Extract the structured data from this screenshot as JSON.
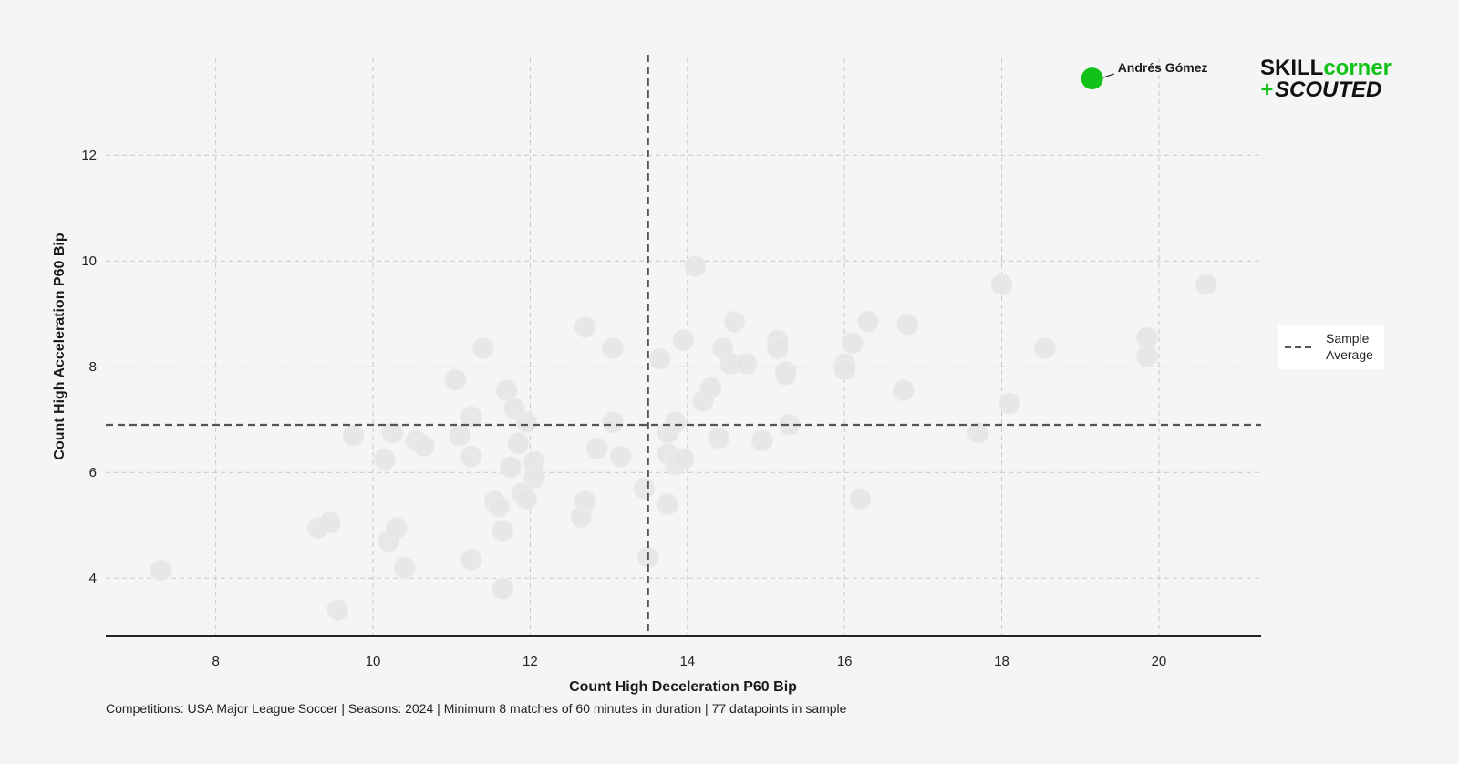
{
  "chart_data": {
    "type": "scatter",
    "title": "",
    "xlabel": "Count High Deceleration P60 Bip",
    "ylabel": "Count High Acceleration P60 Bip",
    "xlim": [
      6.6,
      21.3
    ],
    "ylim": [
      2.9,
      13.9
    ],
    "x_ticks": [
      8,
      10,
      12,
      14,
      16,
      18,
      20
    ],
    "y_ticks": [
      4,
      6,
      8,
      10,
      12
    ],
    "grid": true,
    "reference_lines": {
      "x_average": 13.5,
      "y_average": 6.9,
      "legend_label_line1": "Sample",
      "legend_label_line2": "Average",
      "legend_placement": "right"
    },
    "highlight": {
      "name": "Andrés Gómez",
      "x": 19.15,
      "y": 13.45,
      "color": "#11c218"
    },
    "points": [
      {
        "x": 7.3,
        "y": 4.15
      },
      {
        "x": 9.3,
        "y": 4.95
      },
      {
        "x": 9.45,
        "y": 5.05
      },
      {
        "x": 9.55,
        "y": 3.4
      },
      {
        "x": 9.75,
        "y": 6.7
      },
      {
        "x": 10.15,
        "y": 6.25
      },
      {
        "x": 10.25,
        "y": 6.75
      },
      {
        "x": 10.2,
        "y": 4.7
      },
      {
        "x": 10.3,
        "y": 4.95
      },
      {
        "x": 10.4,
        "y": 4.2
      },
      {
        "x": 10.55,
        "y": 6.6
      },
      {
        "x": 10.65,
        "y": 6.5
      },
      {
        "x": 11.05,
        "y": 7.75
      },
      {
        "x": 11.1,
        "y": 6.7
      },
      {
        "x": 11.25,
        "y": 7.05
      },
      {
        "x": 11.25,
        "y": 6.3
      },
      {
        "x": 11.25,
        "y": 4.35
      },
      {
        "x": 11.4,
        "y": 8.35
      },
      {
        "x": 11.55,
        "y": 5.45
      },
      {
        "x": 11.6,
        "y": 5.35
      },
      {
        "x": 11.65,
        "y": 4.9
      },
      {
        "x": 11.65,
        "y": 3.8
      },
      {
        "x": 11.7,
        "y": 7.55
      },
      {
        "x": 11.75,
        "y": 6.1
      },
      {
        "x": 11.8,
        "y": 7.2
      },
      {
        "x": 11.85,
        "y": 6.55
      },
      {
        "x": 11.9,
        "y": 5.6
      },
      {
        "x": 11.95,
        "y": 6.95
      },
      {
        "x": 11.95,
        "y": 5.5
      },
      {
        "x": 12.05,
        "y": 6.2
      },
      {
        "x": 12.05,
        "y": 5.9
      },
      {
        "x": 12.65,
        "y": 5.15
      },
      {
        "x": 12.7,
        "y": 8.75
      },
      {
        "x": 12.7,
        "y": 5.45
      },
      {
        "x": 12.85,
        "y": 6.45
      },
      {
        "x": 13.05,
        "y": 8.35
      },
      {
        "x": 13.05,
        "y": 6.95
      },
      {
        "x": 13.15,
        "y": 6.3
      },
      {
        "x": 13.45,
        "y": 5.7
      },
      {
        "x": 13.5,
        "y": 4.4
      },
      {
        "x": 13.65,
        "y": 8.15
      },
      {
        "x": 13.75,
        "y": 6.75
      },
      {
        "x": 13.75,
        "y": 6.35
      },
      {
        "x": 13.75,
        "y": 5.4
      },
      {
        "x": 13.85,
        "y": 6.95
      },
      {
        "x": 13.85,
        "y": 6.15
      },
      {
        "x": 13.95,
        "y": 8.5
      },
      {
        "x": 13.95,
        "y": 6.25
      },
      {
        "x": 14.1,
        "y": 9.9
      },
      {
        "x": 14.2,
        "y": 7.35
      },
      {
        "x": 14.3,
        "y": 7.6
      },
      {
        "x": 14.4,
        "y": 6.65
      },
      {
        "x": 14.45,
        "y": 8.35
      },
      {
        "x": 14.55,
        "y": 8.05
      },
      {
        "x": 14.6,
        "y": 8.85
      },
      {
        "x": 14.75,
        "y": 8.05
      },
      {
        "x": 14.95,
        "y": 6.6
      },
      {
        "x": 15.15,
        "y": 8.5
      },
      {
        "x": 15.15,
        "y": 8.35
      },
      {
        "x": 15.25,
        "y": 7.9
      },
      {
        "x": 15.25,
        "y": 7.85
      },
      {
        "x": 15.3,
        "y": 6.9
      },
      {
        "x": 16.0,
        "y": 8.05
      },
      {
        "x": 16.0,
        "y": 7.95
      },
      {
        "x": 16.1,
        "y": 8.45
      },
      {
        "x": 16.2,
        "y": 5.5
      },
      {
        "x": 16.3,
        "y": 8.85
      },
      {
        "x": 16.75,
        "y": 7.55
      },
      {
        "x": 16.8,
        "y": 8.8
      },
      {
        "x": 17.7,
        "y": 6.75
      },
      {
        "x": 18.0,
        "y": 9.55
      },
      {
        "x": 18.1,
        "y": 7.3
      },
      {
        "x": 18.55,
        "y": 8.35
      },
      {
        "x": 19.85,
        "y": 8.55
      },
      {
        "x": 19.85,
        "y": 8.2
      },
      {
        "x": 20.6,
        "y": 9.55
      }
    ],
    "point_color": "#e6e6e6",
    "footnote": "Competitions: USA Major League Soccer | Seasons: 2024 | Minimum 8 matches of 60 minutes in duration | 77 datapoints in sample"
  },
  "logo": {
    "word1": "SKILL",
    "word2": "corner",
    "plus": "+",
    "word3": "SCOUTED",
    "green": "#11c218",
    "dark": "#111111"
  }
}
